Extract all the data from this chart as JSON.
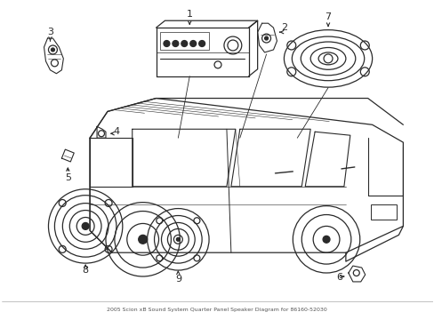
{
  "title": "2005 Scion xB Sound System Quarter Panel Speaker Diagram for 86160-52030",
  "background_color": "#ffffff",
  "line_color": "#2a2a2a",
  "fig_width": 4.89,
  "fig_height": 3.6,
  "dpi": 100,
  "border_color": "#888888",
  "label_fontsize": 8,
  "small_fontsize": 4.5
}
